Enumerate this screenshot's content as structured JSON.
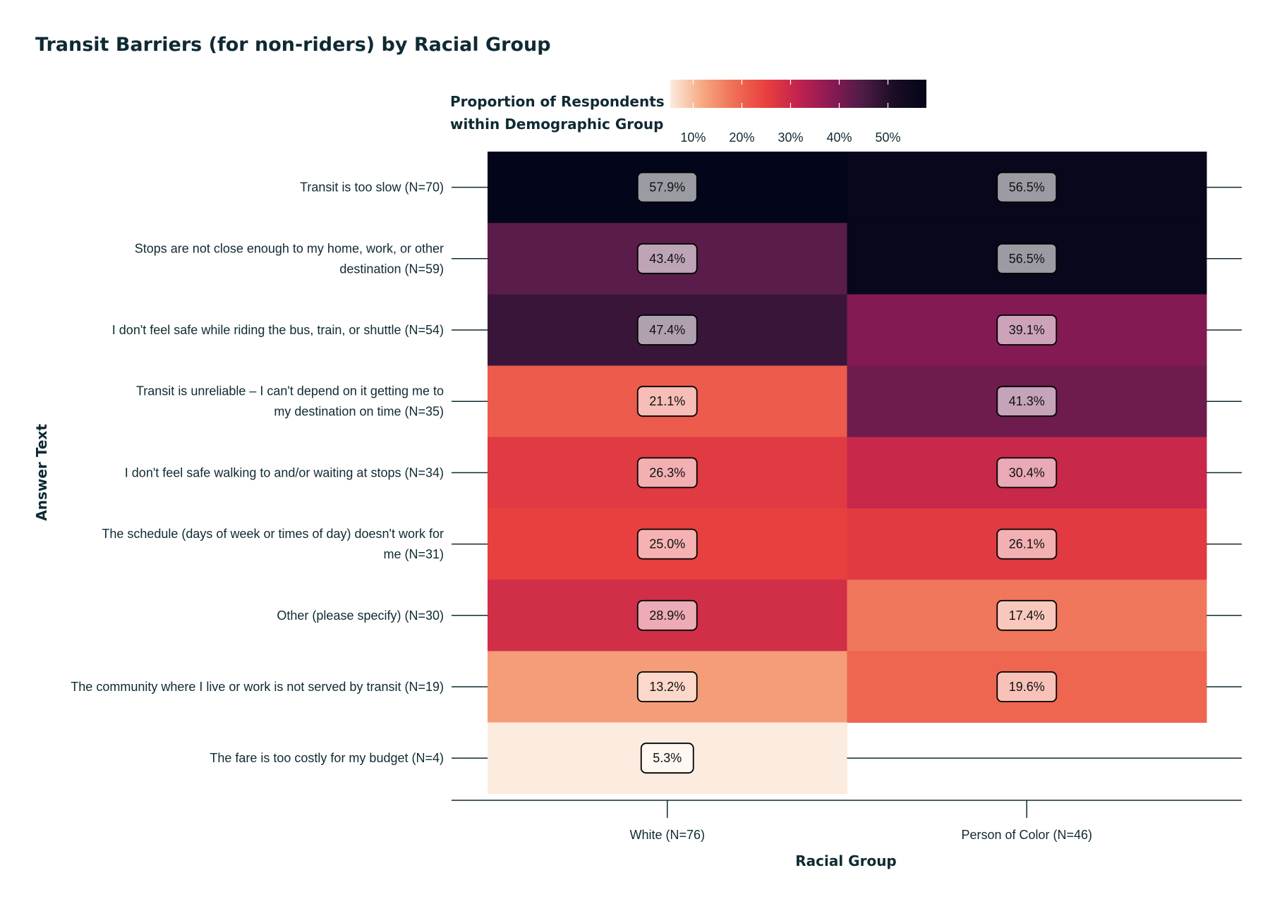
{
  "chart_data": {
    "type": "heatmap",
    "title": "Transit Barriers (for non-riders) by Racial Group",
    "xlabel": "Racial Group",
    "ylabel": "Answer Text",
    "legend": {
      "title_lines": [
        "Proportion of Respondents",
        "within Demographic Group"
      ],
      "ticks": [
        "10%",
        "20%",
        "30%",
        "40%",
        "50%"
      ],
      "tick_values": [
        0.1,
        0.2,
        0.3,
        0.4,
        0.5
      ],
      "range": [
        0.053,
        0.579
      ],
      "placement": "top"
    },
    "categories": [
      "White (N=76)",
      "Person of Color (N=46)"
    ],
    "rows": [
      [
        "Transit is too slow (N=70)"
      ],
      [
        "Stops are not close enough to my home, work, or other",
        "destination (N=59)"
      ],
      [
        "I don't feel safe while riding the bus, train, or shuttle (N=54)"
      ],
      [
        "Transit is unreliable – I can't depend on it getting me to",
        "my destination on time (N=35)"
      ],
      [
        "I don't feel safe walking to and/or waiting at stops (N=34)"
      ],
      [
        "The schedule (days of week or times of day) doesn't work for",
        "me (N=31)"
      ],
      [
        "Other (please specify) (N=30)"
      ],
      [
        "The community where I live or work is not served by transit (N=19)"
      ],
      [
        "The fare is too costly for my budget (N=4)"
      ]
    ],
    "values": [
      [
        0.579,
        0.565
      ],
      [
        0.434,
        0.565
      ],
      [
        0.474,
        0.391
      ],
      [
        0.211,
        0.413
      ],
      [
        0.263,
        0.304
      ],
      [
        0.25,
        0.261
      ],
      [
        0.289,
        0.174
      ],
      [
        0.132,
        0.196
      ],
      [
        0.053,
        null
      ]
    ],
    "labels": [
      [
        "57.9%",
        "56.5%"
      ],
      [
        "43.4%",
        "56.5%"
      ],
      [
        "47.4%",
        "39.1%"
      ],
      [
        "21.1%",
        "41.3%"
      ],
      [
        "26.3%",
        "30.4%"
      ],
      [
        "25.0%",
        "26.1%"
      ],
      [
        "28.9%",
        "17.4%"
      ],
      [
        "13.2%",
        "19.6%"
      ],
      [
        "5.3%",
        ""
      ]
    ],
    "colors": {
      "text": "#0f2a33",
      "axis": "#0f2a33",
      "scale": [
        "#fcebdf",
        "#f6a982",
        "#ef6e54",
        "#e83f3f",
        "#c1234d",
        "#8c1a55",
        "#4d1c47",
        "#1b0d24",
        "#03051a"
      ]
    },
    "grid": false
  }
}
